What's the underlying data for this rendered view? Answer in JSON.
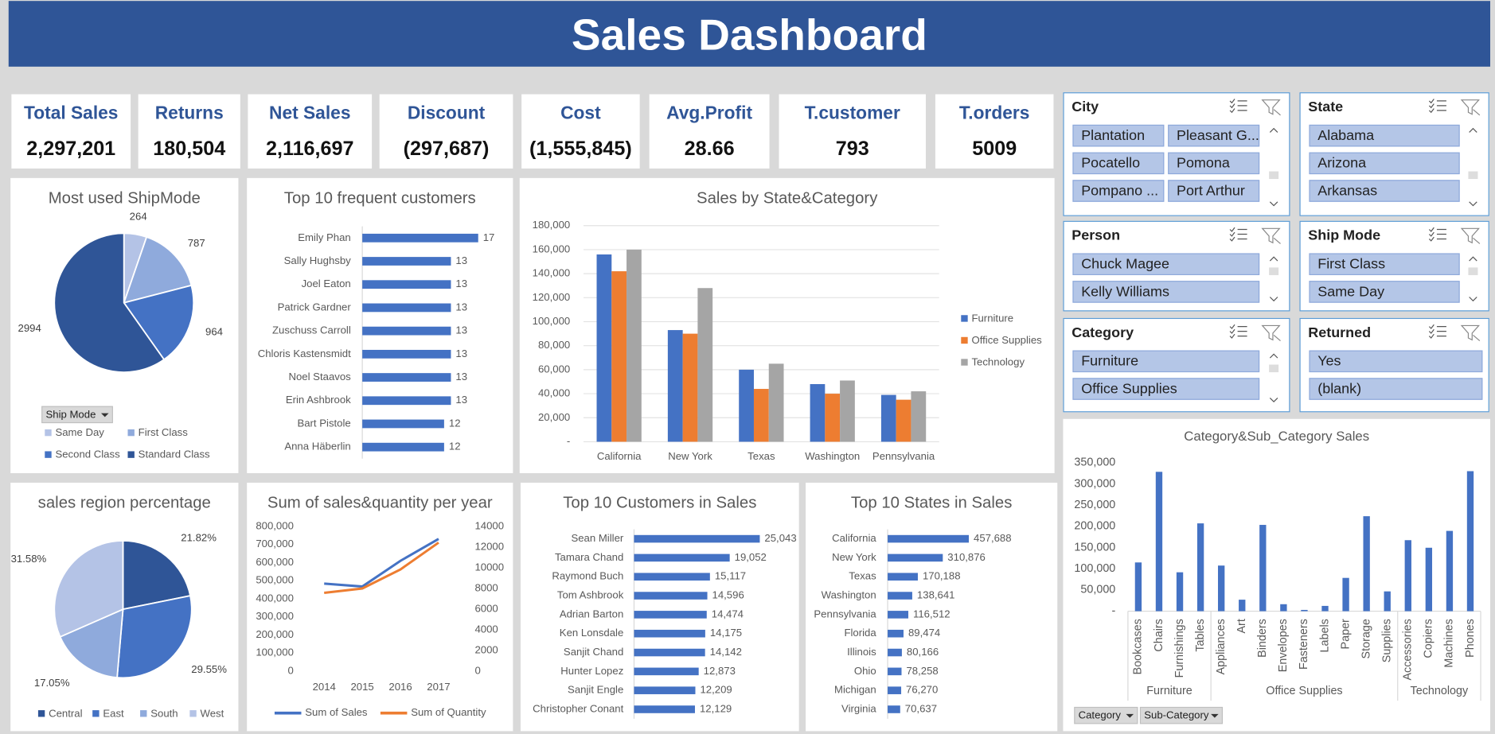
{
  "header": {
    "title": "Sales Dashboard"
  },
  "kpis": [
    {
      "label": "Total Sales",
      "value": "2,297,201"
    },
    {
      "label": "Returns",
      "value": "180,504"
    },
    {
      "label": "Net Sales",
      "value": "2,116,697"
    },
    {
      "label": "Discount",
      "value": "(297,687)"
    },
    {
      "label": "Cost",
      "value": "(1,555,845)"
    },
    {
      "label": "Avg.Profit",
      "value": "28.66"
    },
    {
      "label": "T.customer",
      "value": "793"
    },
    {
      "label": "T.orders",
      "value": "5009"
    }
  ],
  "slicers": [
    {
      "title": "City",
      "items": [
        "Plantation",
        "Pleasant G...",
        "Pocatello",
        "Pomona",
        "Pompano ...",
        "Port Arthur"
      ]
    },
    {
      "title": "State",
      "items": [
        "Alabama",
        "Arizona",
        "Arkansas"
      ]
    },
    {
      "title": "Person",
      "items": [
        "Chuck Magee",
        "Kelly Williams"
      ]
    },
    {
      "title": "Ship Mode",
      "items": [
        "First Class",
        "Same Day"
      ]
    },
    {
      "title": "Category",
      "items": [
        "Furniture",
        "Office Supplies"
      ]
    },
    {
      "title": "Returned",
      "items": [
        "Yes",
        "(blank)"
      ]
    }
  ],
  "chart_data": [
    {
      "type": "pie",
      "title": "Most used ShipMode",
      "filter_button": "Ship Mode",
      "categories": [
        "Same Day",
        "First Class",
        "Second Class",
        "Standard Class"
      ],
      "values": [
        264,
        787,
        964,
        2994
      ],
      "colors": [
        "#b4c3e6",
        "#8faadc",
        "#4472c4",
        "#2f5597"
      ],
      "legend": "bottom"
    },
    {
      "type": "hbar",
      "title": "Top 10 frequent customers",
      "categories": [
        "Emily Phan",
        "Sally Hughsby",
        "Joel Eaton",
        "Patrick Gardner",
        "Zuschuss Carroll",
        "Chloris Kastensmidt",
        "Noel Staavos",
        "Erin Ashbrook",
        "Bart Pistole",
        "Anna Häberlin"
      ],
      "values": [
        17,
        13,
        13,
        13,
        13,
        13,
        13,
        13,
        12,
        12
      ],
      "xlim": [
        0,
        20
      ],
      "color": "#4472c4"
    },
    {
      "type": "column",
      "title": "Sales by State&Category",
      "categories": [
        "California",
        "New York",
        "Texas",
        "Washington",
        "Pennsylvania"
      ],
      "series": [
        {
          "name": "Furniture",
          "color": "#4472c4",
          "values": [
            156000,
            93000,
            60000,
            48000,
            39000
          ]
        },
        {
          "name": "Office Supplies",
          "color": "#ed7d31",
          "values": [
            142000,
            90000,
            44000,
            40000,
            35000
          ]
        },
        {
          "name": "Technology",
          "color": "#a5a5a5",
          "values": [
            160000,
            128000,
            65000,
            51000,
            42000
          ]
        }
      ],
      "ylim": [
        0,
        180000
      ],
      "yticks": [
        {
          "value": 0,
          "label": "-"
        },
        {
          "value": 20000,
          "label": "20,000"
        },
        {
          "value": 40000,
          "label": "40,000"
        },
        {
          "value": 60000,
          "label": "60,000"
        },
        {
          "value": 80000,
          "label": "80,000"
        },
        {
          "value": 100000,
          "label": "100,000"
        },
        {
          "value": 120000,
          "label": "120,000"
        },
        {
          "value": 140000,
          "label": "140,000"
        },
        {
          "value": 160000,
          "label": "160,000"
        },
        {
          "value": 180000,
          "label": "180,000"
        }
      ],
      "grid": true,
      "legend": "right"
    },
    {
      "type": "pie",
      "title": "sales region percentage",
      "categories": [
        "Central",
        "East",
        "South",
        "West"
      ],
      "values": [
        21.82,
        29.55,
        17.05,
        31.58
      ],
      "value_labels": [
        "21.82%",
        "29.55%",
        "17.05%",
        "31.58%"
      ],
      "colors": [
        "#2f5597",
        "#4472c4",
        "#8faadc",
        "#b4c3e6"
      ],
      "legend": "bottom"
    },
    {
      "type": "line",
      "title": "Sum of sales&quantity per year",
      "categories": [
        "2014",
        "2015",
        "2016",
        "2017"
      ],
      "series": [
        {
          "name": "Sum of Sales",
          "color": "#4472c4",
          "values": [
            484000,
            468000,
            610000,
            731000
          ]
        },
        {
          "name": "Sum of Quantity",
          "color": "#ed7d31",
          "axis": "y2",
          "values": [
            7580,
            8000,
            9840,
            12440
          ]
        }
      ],
      "ylim": [
        0,
        800000
      ],
      "yticks": [
        0,
        {
          "value": 100000,
          "label": "100,000"
        },
        {
          "value": 200000,
          "label": "200,000"
        },
        {
          "value": 300000,
          "label": "300,000"
        },
        {
          "value": 400000,
          "label": "400,000"
        },
        {
          "value": 500000,
          "label": "500,000"
        },
        {
          "value": 600000,
          "label": "600,000"
        },
        {
          "value": 700000,
          "label": "700,000"
        },
        {
          "value": 800000,
          "label": "800,000"
        }
      ],
      "y2lim": [
        0,
        14000
      ],
      "y2ticks": [
        0,
        2000,
        4000,
        6000,
        8000,
        10000,
        12000,
        14000
      ],
      "legend": "bottom"
    },
    {
      "type": "hbar",
      "title": "Top 10 Customers in Sales",
      "categories": [
        "Sean Miller",
        "Tamara Chand",
        "Raymond Buch",
        "Tom Ashbrook",
        "Adrian Barton",
        "Ken Lonsdale",
        "Sanjit Chand",
        "Hunter Lopez",
        "Sanjit Engle",
        "Christopher Conant"
      ],
      "values": [
        25043,
        19052,
        15117,
        14596,
        14474,
        14175,
        14142,
        12873,
        12209,
        12129
      ],
      "value_labels": [
        "25,043",
        "19,052",
        "15,117",
        "14,596",
        "14,474",
        "14,175",
        "14,142",
        "12,873",
        "12,209",
        "12,129"
      ],
      "xlim": [
        0,
        30000
      ],
      "color": "#4472c4"
    },
    {
      "type": "hbar",
      "title": "Top 10 States in Sales",
      "categories": [
        "California",
        "New York",
        "Texas",
        "Washington",
        "Pennsylvania",
        "Florida",
        "Illinois",
        "Ohio",
        "Michigan",
        "Virginia"
      ],
      "values": [
        457688,
        310876,
        170188,
        138641,
        116512,
        89474,
        80166,
        78258,
        76270,
        70637
      ],
      "value_labels": [
        "457,688",
        "310,876",
        "170,188",
        "138,641",
        "116,512",
        "89,474",
        "80,166",
        "78,258",
        "76,270",
        "70,637"
      ],
      "xlim": [
        0,
        500000
      ],
      "color": "#4472c4"
    },
    {
      "type": "column_grouped",
      "title": "Category&Sub_Category Sales",
      "filter_buttons": [
        "Category",
        "Sub-Category"
      ],
      "groups": [
        {
          "name": "Furniture",
          "categories": [
            "Bookcases",
            "Chairs",
            "Furnishings",
            "Tables"
          ],
          "values": [
            114880,
            328449,
            91705,
            206966
          ]
        },
        {
          "name": "Office Supplies",
          "categories": [
            "Appliances",
            "Art",
            "Binders",
            "Envelopes",
            "Fasteners",
            "Labels",
            "Paper",
            "Storage",
            "Supplies"
          ],
          "values": [
            107532,
            27119,
            203413,
            16476,
            3024,
            12486,
            78479,
            223844,
            46674
          ]
        },
        {
          "name": "Technology",
          "categories": [
            "Accessories",
            "Copiers",
            "Machines",
            "Phones"
          ],
          "values": [
            167380,
            149528,
            189239,
            330007
          ]
        }
      ],
      "ylim": [
        0,
        350000
      ],
      "yticks": [
        {
          "value": 0,
          "label": "-"
        },
        {
          "value": 50000,
          "label": "50,000"
        },
        {
          "value": 100000,
          "label": "100,000"
        },
        {
          "value": 150000,
          "label": "150,000"
        },
        {
          "value": 200000,
          "label": "200,000"
        },
        {
          "value": 250000,
          "label": "250,000"
        },
        {
          "value": 300000,
          "label": "300,000"
        },
        {
          "value": 350000,
          "label": "350,000"
        }
      ],
      "color": "#4472c4",
      "grid": false
    }
  ]
}
